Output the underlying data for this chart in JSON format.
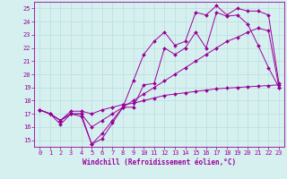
{
  "xlabel": "Windchill (Refroidissement éolien,°C)",
  "xlim": [
    -0.5,
    23.5
  ],
  "ylim": [
    14.5,
    25.5
  ],
  "yticks": [
    15,
    16,
    17,
    18,
    19,
    20,
    21,
    22,
    23,
    24,
    25
  ],
  "xticks": [
    0,
    1,
    2,
    3,
    4,
    5,
    6,
    7,
    8,
    9,
    10,
    11,
    12,
    13,
    14,
    15,
    16,
    17,
    18,
    19,
    20,
    21,
    22,
    23
  ],
  "bg_color": "#d6f0f0",
  "line_color": "#990099",
  "grid_color": "#b8dede",
  "lines": [
    {
      "x": [
        0,
        1,
        2,
        3,
        4,
        5,
        6,
        7,
        8,
        9,
        10,
        11,
        12,
        13,
        14,
        15,
        16,
        17,
        18,
        19,
        20,
        21,
        22,
        23
      ],
      "y": [
        17.3,
        17.0,
        16.2,
        17.0,
        17.0,
        14.7,
        15.1,
        16.3,
        17.5,
        17.5,
        19.2,
        19.3,
        22.0,
        21.5,
        22.0,
        23.2,
        22.0,
        24.7,
        24.4,
        24.5,
        23.8,
        22.2,
        20.5,
        19.0
      ]
    },
    {
      "x": [
        0,
        1,
        2,
        3,
        4,
        5,
        6,
        7,
        8,
        9,
        10,
        11,
        12,
        13,
        14,
        15,
        16,
        17,
        18,
        19,
        20,
        21,
        22,
        23
      ],
      "y": [
        17.3,
        17.0,
        16.5,
        17.0,
        16.8,
        14.7,
        15.5,
        16.5,
        17.5,
        19.5,
        21.5,
        22.5,
        23.2,
        22.2,
        22.5,
        24.7,
        24.5,
        25.2,
        24.5,
        25.0,
        24.8,
        24.8,
        24.5,
        19.3
      ]
    },
    {
      "x": [
        0,
        1,
        2,
        3,
        4,
        5,
        6,
        7,
        8,
        9,
        10,
        11,
        12,
        13,
        14,
        15,
        16,
        17,
        18,
        19,
        20,
        21,
        22,
        23
      ],
      "y": [
        17.3,
        17.0,
        16.5,
        17.2,
        17.2,
        17.0,
        17.3,
        17.5,
        17.7,
        17.8,
        18.0,
        18.2,
        18.4,
        18.5,
        18.6,
        18.7,
        18.8,
        18.9,
        18.95,
        19.0,
        19.05,
        19.1,
        19.15,
        19.2
      ]
    },
    {
      "x": [
        0,
        1,
        2,
        3,
        4,
        5,
        6,
        7,
        8,
        9,
        10,
        11,
        12,
        13,
        14,
        15,
        16,
        17,
        18,
        19,
        20,
        21,
        22,
        23
      ],
      "y": [
        17.3,
        17.0,
        16.5,
        17.0,
        17.0,
        16.0,
        16.5,
        17.0,
        17.5,
        18.0,
        18.5,
        19.0,
        19.5,
        20.0,
        20.5,
        21.0,
        21.5,
        22.0,
        22.5,
        22.8,
        23.2,
        23.5,
        23.3,
        19.0
      ]
    }
  ],
  "tick_fontsize": 5,
  "xlabel_fontsize": 5.5,
  "marker_size": 2,
  "linewidth": 0.7
}
